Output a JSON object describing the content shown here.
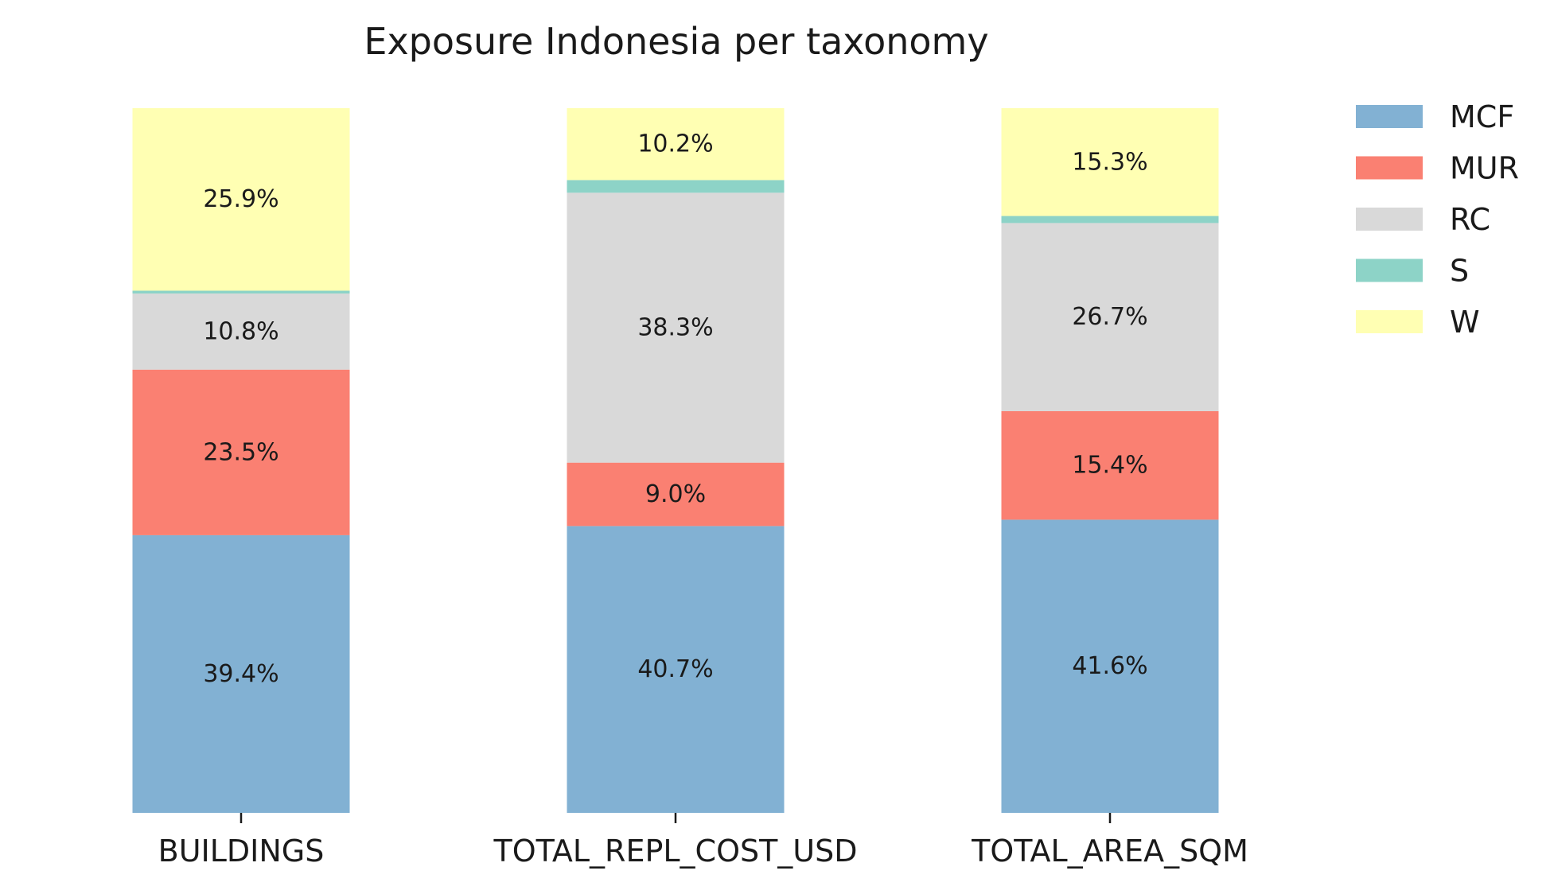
{
  "chart_data": {
    "type": "bar",
    "stacked": true,
    "title": "Exposure Indonesia per taxonomy",
    "xlabel": "",
    "ylabel": "",
    "ylim": [
      0,
      100
    ],
    "grid": false,
    "legend_position": "top-right",
    "categories": [
      "BUILDINGS",
      "TOTAL_REPL_COST_USD",
      "TOTAL_AREA_SQM"
    ],
    "series": [
      {
        "name": "MCF",
        "color": "#82b1d3",
        "values": [
          39.4,
          40.7,
          41.6
        ],
        "labels": [
          "39.4%",
          "40.7%",
          "41.6%"
        ]
      },
      {
        "name": "MUR",
        "color": "#fa8072",
        "values": [
          23.5,
          9.0,
          15.4
        ],
        "labels": [
          "23.5%",
          "9.0%",
          "15.4%"
        ]
      },
      {
        "name": "RC",
        "color": "#d9d9d9",
        "values": [
          10.8,
          38.3,
          26.7
        ],
        "labels": [
          "10.8%",
          "38.3%",
          "26.7%"
        ]
      },
      {
        "name": "S",
        "color": "#8dd3c7",
        "values": [
          0.4,
          1.8,
          1.0
        ],
        "labels": [
          "",
          "",
          ""
        ]
      },
      {
        "name": "W",
        "color": "#ffffb3",
        "values": [
          25.9,
          10.2,
          15.3
        ],
        "labels": [
          "25.9%",
          "10.2%",
          "15.3%"
        ]
      }
    ]
  }
}
